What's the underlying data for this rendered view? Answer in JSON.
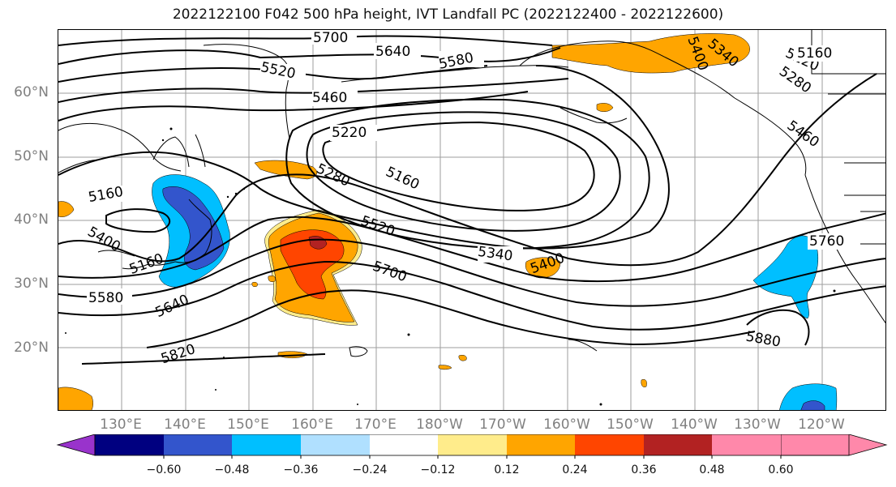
{
  "title": "2022122100 F042 500 hPa height, IVT Landfall PC (2022122400 - 2022122600)",
  "lat_labels": [
    "60°N",
    "50°N",
    "40°N",
    "30°N",
    "20°N"
  ],
  "lon_labels": [
    "130°E",
    "140°E",
    "150°E",
    "160°E",
    "170°E",
    "180°W",
    "170°W",
    "160°W",
    "150°W",
    "140°W",
    "130°W",
    "120°W"
  ],
  "contour_labels": [
    "5700",
    "5640",
    "5580",
    "5520",
    "5460",
    "5400",
    "5340",
    "5280",
    "5220",
    "5160",
    "5220",
    "5280",
    "5160",
    "5160",
    "5520",
    "5340",
    "5400",
    "5700",
    "5760",
    "5880",
    "5820",
    "5640",
    "5580",
    "5400",
    "5160",
    "5460"
  ],
  "colorbar": {
    "ticks": [
      "−0.60",
      "−0.48",
      "−0.36",
      "−0.24",
      "−0.12",
      "0.12",
      "0.24",
      "0.36",
      "0.48",
      "0.60"
    ],
    "colors": [
      "#9933cc",
      "#000080",
      "#3355cc",
      "#00bfff",
      "#b0e0ff",
      "#ffffff",
      "#ffec8b",
      "#ffa500",
      "#ff4500",
      "#b22222",
      "#ff88aa"
    ]
  },
  "colors": {
    "contour": "#000000",
    "grid": "#9e9e9e",
    "coast": "#000000",
    "axis_label": "#808080"
  }
}
